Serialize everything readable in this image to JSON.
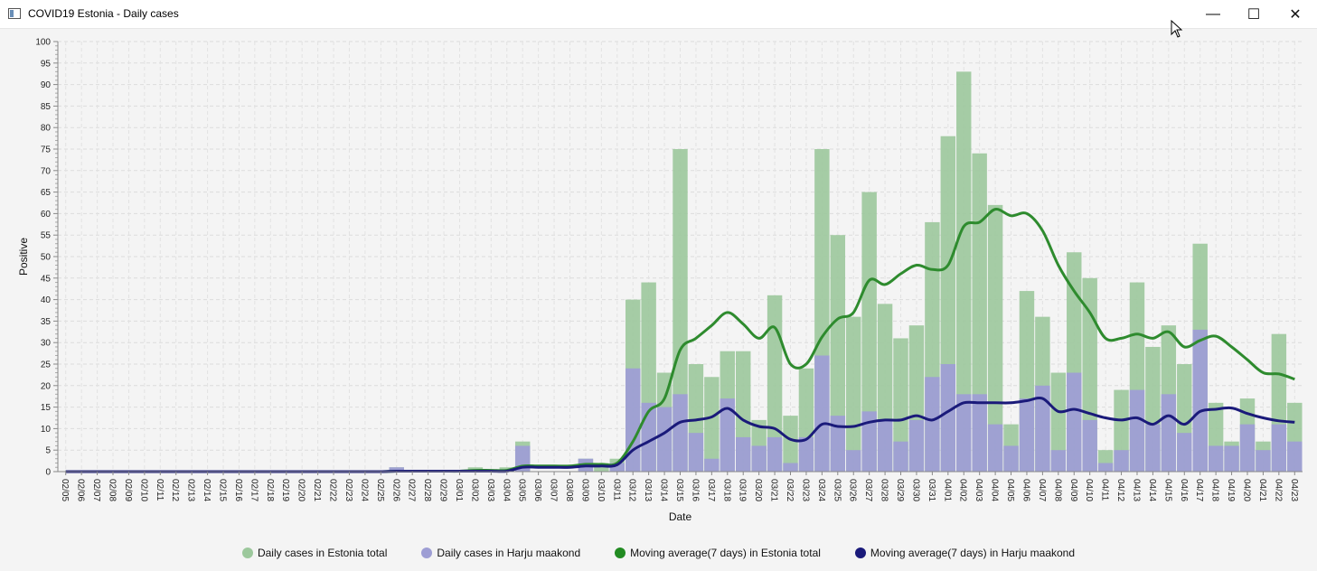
{
  "window": {
    "title": "COVID19 Estonia - Daily cases",
    "buttons": {
      "minimize": "—",
      "maximize": "☐",
      "close": "✕"
    }
  },
  "chart_data": {
    "type": "bar",
    "xlabel": "Date",
    "ylabel": "Positive",
    "ylim": [
      0,
      100
    ],
    "y_ticks": [
      0,
      5,
      10,
      15,
      20,
      25,
      30,
      35,
      40,
      45,
      50,
      55,
      60,
      65,
      70,
      75,
      80,
      85,
      90,
      95,
      100
    ],
    "grid": true,
    "legend_position": "bottom",
    "categories": [
      "02/05",
      "02/06",
      "02/07",
      "02/08",
      "02/09",
      "02/10",
      "02/11",
      "02/12",
      "02/13",
      "02/14",
      "02/15",
      "02/16",
      "02/17",
      "02/18",
      "02/19",
      "02/20",
      "02/21",
      "02/22",
      "02/23",
      "02/24",
      "02/25",
      "02/26",
      "02/27",
      "02/28",
      "02/29",
      "03/01",
      "03/02",
      "03/03",
      "03/04",
      "03/05",
      "03/06",
      "03/07",
      "03/08",
      "03/09",
      "03/10",
      "03/11",
      "03/12",
      "03/13",
      "03/14",
      "03/15",
      "03/16",
      "03/17",
      "03/18",
      "03/19",
      "03/20",
      "03/21",
      "03/22",
      "03/23",
      "03/24",
      "03/25",
      "03/26",
      "03/27",
      "03/28",
      "03/29",
      "03/30",
      "03/31",
      "04/01",
      "04/02",
      "04/03",
      "04/04",
      "04/05",
      "04/06",
      "04/07",
      "04/08",
      "04/09",
      "04/10",
      "04/11",
      "04/12",
      "04/13",
      "04/14",
      "04/15",
      "04/16",
      "04/17",
      "04/18",
      "04/19",
      "04/20",
      "04/21",
      "04/22",
      "04/23"
    ],
    "series": [
      {
        "name": "Daily cases in Estonia total",
        "kind": "bar",
        "color": "#9cc89c",
        "values": [
          0,
          0,
          0,
          0,
          0,
          0,
          0,
          0,
          0,
          0,
          0,
          0,
          0,
          0,
          0,
          0,
          0,
          0,
          0,
          0,
          0,
          1,
          0,
          0,
          0,
          0,
          1,
          0,
          1,
          7,
          0,
          0,
          0,
          3,
          2,
          3,
          40,
          44,
          23,
          75,
          25,
          22,
          28,
          28,
          12,
          41,
          13,
          24,
          75,
          55,
          36,
          65,
          39,
          31,
          34,
          58,
          78,
          93,
          74,
          62,
          11,
          42,
          36,
          23,
          51,
          45,
          5,
          19,
          44,
          29,
          34,
          25,
          53,
          16,
          7,
          17,
          7,
          32,
          16
        ]
      },
      {
        "name": "Daily cases in Harju maakond",
        "kind": "bar",
        "color": "#9e9ed4",
        "values": [
          0,
          0,
          0,
          0,
          0,
          0,
          0,
          0,
          0,
          0,
          0,
          0,
          0,
          0,
          0,
          0,
          0,
          0,
          0,
          0,
          0,
          1,
          0,
          0,
          0,
          0,
          0,
          0,
          0,
          6,
          0,
          0,
          0,
          3,
          0,
          2,
          24,
          16,
          15,
          18,
          9,
          3,
          17,
          8,
          6,
          8,
          2,
          8,
          27,
          13,
          5,
          14,
          12,
          7,
          12,
          22,
          25,
          18,
          18,
          11,
          6,
          17,
          20,
          5,
          23,
          12,
          2,
          5,
          19,
          11,
          18,
          9,
          33,
          6,
          6,
          11,
          5,
          11,
          7
        ]
      },
      {
        "name": "Moving average(7 days) in Estonia total",
        "kind": "line",
        "color": "#2e8b2e",
        "values": [
          0,
          0,
          0,
          0,
          0,
          0,
          0,
          0,
          0,
          0,
          0,
          0,
          0,
          0,
          0,
          0,
          0,
          0,
          0,
          0,
          0,
          0.1,
          0.1,
          0.1,
          0.1,
          0.1,
          0.3,
          0.3,
          0.3,
          1.3,
          1.3,
          1.3,
          1.3,
          1.7,
          1.7,
          2,
          7,
          14,
          17,
          28.3,
          31,
          34,
          37,
          34.3,
          31,
          33.5,
          25,
          25,
          31.3,
          35.5,
          37,
          44.5,
          43.5,
          46,
          48,
          47,
          48,
          57,
          58,
          61,
          59.5,
          60,
          56,
          48,
          42,
          37,
          31,
          31,
          32,
          31,
          32.5,
          29,
          30.5,
          31.5,
          29,
          26,
          23,
          22.7,
          21.5
        ]
      },
      {
        "name": "Moving average(7 days) in Harju maakond",
        "kind": "line",
        "color": "#1a1a7a",
        "values": [
          0,
          0,
          0,
          0,
          0,
          0,
          0,
          0,
          0,
          0,
          0,
          0,
          0,
          0,
          0,
          0,
          0,
          0,
          0,
          0,
          0,
          0.1,
          0.1,
          0.1,
          0.1,
          0.1,
          0.1,
          0.1,
          0.1,
          1,
          1,
          1,
          1,
          1.3,
          1.3,
          1.6,
          5,
          7,
          9,
          11.5,
          12,
          12.7,
          14.7,
          12,
          10.5,
          10,
          7.5,
          7.5,
          11,
          10.5,
          10.5,
          11.5,
          12,
          12,
          13,
          12,
          14,
          16,
          16,
          16,
          16,
          16.5,
          17,
          14,
          14.5,
          13.5,
          12.5,
          12,
          12.5,
          11,
          13,
          11,
          14,
          14.5,
          14.8,
          13.5,
          12.5,
          11.8,
          11.5
        ]
      }
    ]
  }
}
